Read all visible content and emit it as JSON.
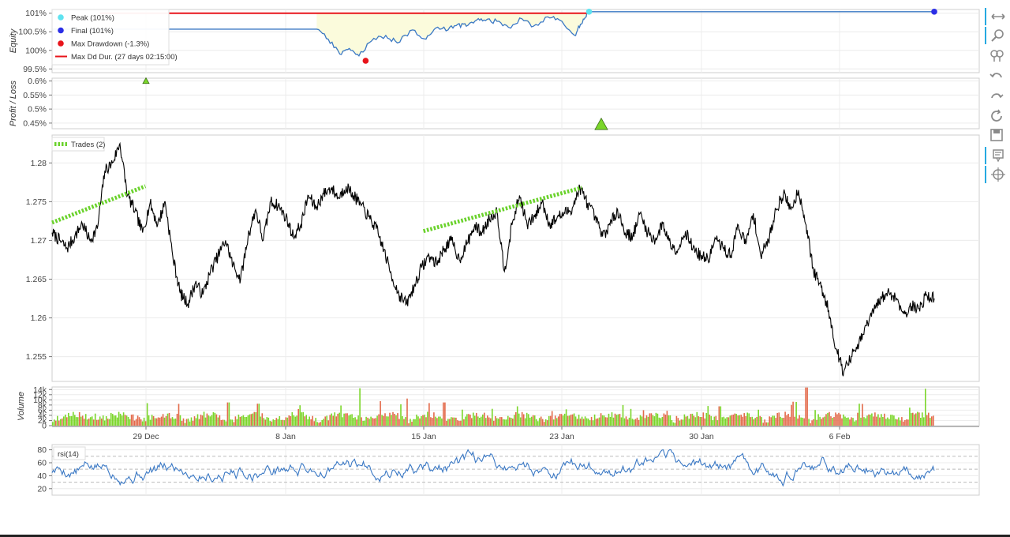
{
  "panels": {
    "equity": {
      "ylabel": "Equity",
      "ticks": [
        "101%",
        "100.5%",
        "100%",
        "99.5%"
      ],
      "tick_values": [
        101,
        100.5,
        100,
        99.5
      ],
      "legend": [
        {
          "label": "Peak (101%)",
          "color": "#5fe3f0",
          "kind": "dot"
        },
        {
          "label": "Final (101%)",
          "color": "#2b2ee6",
          "kind": "dot"
        },
        {
          "label": "Max Drawdown (-1.3%)",
          "color": "#e8141b",
          "kind": "dot"
        },
        {
          "label": "Max Dd Dur. (27 days 02:15:00)",
          "color": "#e8141b",
          "kind": "line"
        }
      ]
    },
    "pnl": {
      "ylabel": "Profit / Loss",
      "ticks": [
        "0.6%",
        "0.55%",
        "0.5%",
        "0.45%"
      ],
      "tick_values": [
        0.6,
        0.55,
        0.5,
        0.45
      ]
    },
    "price": {
      "ticks": [
        "1.28",
        "1.275",
        "1.27",
        "1.265",
        "1.26",
        "1.255"
      ],
      "tick_values": [
        1.28,
        1.275,
        1.27,
        1.265,
        1.26,
        1.255
      ],
      "legend": "Trades (2)"
    },
    "volume": {
      "ylabel": "Volume",
      "ticks": [
        "14k",
        "12k",
        "10k",
        "8k",
        "6k",
        "4k",
        "2k",
        "0"
      ],
      "tick_values": [
        14000,
        12000,
        10000,
        8000,
        6000,
        4000,
        2000,
        0
      ]
    },
    "rsi": {
      "legend": "rsi(14)",
      "ticks": [
        "80",
        "60",
        "40",
        "20"
      ],
      "tick_values": [
        80,
        60,
        40,
        20
      ]
    }
  },
  "x_axis": {
    "labels": [
      "29 Dec",
      "8 Jan",
      "15 Jan",
      "23 Jan",
      "30 Jan",
      "6 Feb"
    ],
    "positions_days": [
      7,
      17,
      24,
      32,
      39,
      46
    ]
  },
  "chart_data": {
    "type": "line",
    "x_unit": "days since first bar (axis printed as dates)",
    "x_range": [
      0,
      56
    ],
    "equity": {
      "ylim": [
        99.4,
        101.1
      ],
      "series": [
        {
          "name": "Equity",
          "color": "#3a78c4",
          "x": [
            0,
            5,
            27.6,
            28.8,
            30,
            31,
            32,
            33.3,
            34.8,
            36,
            37.6,
            39,
            40,
            41.3,
            42.3,
            43.2,
            44.3,
            45.2,
            46.4,
            47.6,
            49,
            50.2,
            51.7,
            52.9,
            54.5,
            55.1,
            55.7,
            56
          ],
          "y": [
            100.57,
            100.57,
            100.57,
            100.3,
            99.9,
            100.05,
            99.85,
            100.25,
            100.4,
            100.2,
            100.55,
            100.3,
            100.6,
            100.55,
            100.7,
            100.65,
            100.82,
            100.8,
            100.78,
            100.62,
            100.85,
            100.65,
            100.9,
            100.82,
            100.4,
            100.7,
            100.9,
            101.04
          ]
        },
        {
          "name": "Final",
          "color": "#3a78c4",
          "x": [
            56,
            92
          ],
          "y": [
            101.04,
            101.04
          ]
        }
      ],
      "peak_line": {
        "color": "#e8141b",
        "x": [
          5,
          56
        ],
        "y": [
          101.0,
          101.0
        ]
      },
      "points": [
        {
          "name": "Peak (101%)",
          "x": 56,
          "y": 101.04,
          "color": "#5fe3f0"
        },
        {
          "name": "Final (101%)",
          "x": 92,
          "y": 101.04,
          "color": "#2b2ee6"
        },
        {
          "name": "Max Drawdown (-1.3%)",
          "x": 32.7,
          "y": 99.72,
          "color": "#e8141b"
        }
      ]
    },
    "pnl": {
      "ylim": [
        0.43,
        0.61
      ],
      "markers": [
        {
          "x": 7,
          "y": 0.6,
          "color": "#7bd62a",
          "size": "small"
        },
        {
          "x": 40,
          "y": 0.445,
          "color": "#7bd62a",
          "size": "large"
        }
      ]
    },
    "price": {
      "ylim": [
        1.2518,
        1.2836
      ],
      "anchors": [
        [
          0,
          1.271
        ],
        [
          0.8,
          1.27
        ],
        [
          1.6,
          1.269
        ],
        [
          2.4,
          1.2705
        ],
        [
          3.2,
          1.2722
        ],
        [
          4,
          1.27
        ],
        [
          4.8,
          1.2715
        ],
        [
          5.6,
          1.279
        ],
        [
          6.4,
          1.28
        ],
        [
          7.2,
          1.2825
        ],
        [
          8,
          1.2758
        ],
        [
          8.8,
          1.2738
        ],
        [
          9.6,
          1.271
        ],
        [
          10.4,
          1.2748
        ],
        [
          11.2,
          1.272
        ],
        [
          12,
          1.275
        ],
        [
          12.8,
          1.268
        ],
        [
          13.6,
          1.2632
        ],
        [
          14.4,
          1.2618
        ],
        [
          15.2,
          1.2645
        ],
        [
          16,
          1.263
        ],
        [
          16.8,
          1.266
        ],
        [
          17.6,
          1.268
        ],
        [
          18.4,
          1.27
        ],
        [
          19.2,
          1.2668
        ],
        [
          20,
          1.265
        ],
        [
          20.8,
          1.2705
        ],
        [
          21.6,
          1.274
        ],
        [
          22.4,
          1.27
        ],
        [
          23.2,
          1.275
        ],
        [
          24,
          1.2745
        ],
        [
          24.8,
          1.273
        ],
        [
          25.6,
          1.2705
        ],
        [
          26.4,
          1.272
        ],
        [
          27.2,
          1.2758
        ],
        [
          28,
          1.2742
        ],
        [
          28.8,
          1.276
        ],
        [
          29.6,
          1.2768
        ],
        [
          30.4,
          1.2755
        ],
        [
          31.2,
          1.277
        ],
        [
          32,
          1.2758
        ],
        [
          32.8,
          1.2745
        ],
        [
          33.6,
          1.273
        ],
        [
          34.4,
          1.2715
        ],
        [
          35.2,
          1.2688
        ],
        [
          36,
          1.2655
        ],
        [
          36.8,
          1.263
        ],
        [
          37.6,
          1.2618
        ],
        [
          38.4,
          1.264
        ],
        [
          39.2,
          1.2665
        ],
        [
          40,
          1.268
        ],
        [
          40.8,
          1.267
        ],
        [
          41.6,
          1.269
        ],
        [
          42.4,
          1.27
        ],
        [
          43.2,
          1.2675
        ],
        [
          44,
          1.2695
        ],
        [
          44.8,
          1.2718
        ],
        [
          45.6,
          1.271
        ],
        [
          46.4,
          1.2728
        ],
        [
          47.2,
          1.2738
        ],
        [
          48,
          1.266
        ],
        [
          48.8,
          1.272
        ],
        [
          49.6,
          1.2758
        ],
        [
          50.4,
          1.272
        ],
        [
          51.2,
          1.273
        ],
        [
          52,
          1.275
        ],
        [
          52.8,
          1.272
        ],
        [
          53.6,
          1.273
        ],
        [
          54.4,
          1.2735
        ],
        [
          55.2,
          1.2742
        ],
        [
          56,
          1.2768
        ],
        [
          56.8,
          1.2748
        ],
        [
          57.6,
          1.273
        ],
        [
          58.4,
          1.2705
        ],
        [
          59.2,
          1.272
        ],
        [
          60,
          1.274
        ],
        [
          60.8,
          1.271
        ],
        [
          61.6,
          1.2705
        ],
        [
          62.4,
          1.2735
        ],
        [
          63.2,
          1.271
        ],
        [
          64,
          1.27
        ],
        [
          64.8,
          1.2722
        ],
        [
          65.6,
          1.2695
        ],
        [
          66.4,
          1.2688
        ],
        [
          67.2,
          1.2712
        ],
        [
          68,
          1.269
        ],
        [
          68.8,
          1.268
        ],
        [
          69.6,
          1.2675
        ],
        [
          70.4,
          1.2702
        ],
        [
          71.2,
          1.269
        ],
        [
          72,
          1.268
        ],
        [
          72.8,
          1.272
        ],
        [
          73.6,
          1.2695
        ],
        [
          74.4,
          1.2735
        ],
        [
          75.2,
          1.268
        ],
        [
          76,
          1.27
        ],
        [
          76.8,
          1.274
        ],
        [
          77.6,
          1.276
        ],
        [
          78.4,
          1.274
        ],
        [
          79.2,
          1.2765
        ],
        [
          80,
          1.272
        ],
        [
          80.8,
          1.266
        ],
        [
          81.6,
          1.264
        ],
        [
          82.4,
          1.261
        ],
        [
          83.2,
          1.256
        ],
        [
          84,
          1.253
        ],
        [
          84.8,
          1.255
        ],
        [
          85.6,
          1.2565
        ],
        [
          86.4,
          1.259
        ],
        [
          87.2,
          1.261
        ],
        [
          88,
          1.2625
        ],
        [
          88.8,
          1.2633
        ],
        [
          89.6,
          1.2625
        ],
        [
          90.4,
          1.2605
        ],
        [
          91.2,
          1.2615
        ],
        [
          92,
          1.2612
        ],
        [
          92.8,
          1.263
        ],
        [
          93.6,
          1.2625
        ]
      ],
      "x_max": 93.6,
      "trades": [
        {
          "x": [
            0,
            9.9
          ],
          "y": [
            1.2723,
            1.277
          ]
        },
        {
          "x": [
            39.4,
            56.2
          ],
          "y": [
            1.2712,
            1.2768
          ]
        }
      ],
      "trade_color": "#6ad22b"
    },
    "volume": {
      "ylim": [
        0,
        15000
      ],
      "up_color": "#7bd62a",
      "down_color": "#e36a4a",
      "spikes": [
        {
          "x": 32.6,
          "v": 14500
        },
        {
          "x": 34.8,
          "v": 9500
        },
        {
          "x": 37.6,
          "v": 10500
        },
        {
          "x": 41.5,
          "v": 9000
        },
        {
          "x": 49.3,
          "v": 7500
        },
        {
          "x": 60.5,
          "v": 8000
        },
        {
          "x": 70.8,
          "v": 7500
        },
        {
          "x": 80,
          "v": 14800
        },
        {
          "x": 92.6,
          "v": 14300
        },
        {
          "x": 18.6,
          "v": 9000
        },
        {
          "x": 21.8,
          "v": 8500
        }
      ]
    },
    "rsi": {
      "ylim": [
        10,
        88
      ],
      "level_lines": [
        30,
        50,
        70
      ],
      "color": "#3a78c4"
    }
  }
}
